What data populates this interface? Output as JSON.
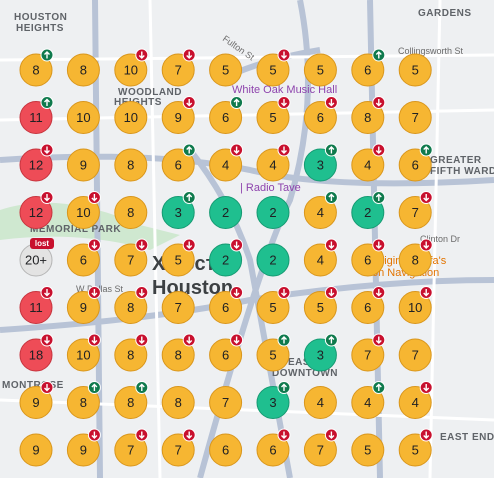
{
  "map": {
    "labels": [
      "HOUSTON",
      "HEIGHTS",
      "WOODLAND",
      "HEIGHTS",
      "White Oak Music Hall",
      "Collingsworth St",
      "Fulton St",
      "GREATER",
      "FIFTH WARD",
      "| Radio Tave",
      "MEMORIAL PARK",
      "Хьюстон",
      "Houston",
      "Clinton Dr",
      "Original Ninfa's",
      "on Navigation",
      "W Dallas St",
      "EAST",
      "DOWNTOWN",
      "MONTROSE",
      "EAST END",
      "GARDENS"
    ],
    "markers": [
      {
        "label": "8",
        "kind": "normal",
        "trend": "up"
      },
      {
        "label": "8",
        "kind": "normal"
      },
      {
        "label": "10",
        "kind": "normal",
        "trend": "down"
      },
      {
        "label": "7",
        "kind": "normal",
        "trend": "down"
      },
      {
        "label": "5",
        "kind": "normal"
      },
      {
        "label": "5",
        "kind": "normal",
        "trend": "down"
      },
      {
        "label": "5",
        "kind": "normal"
      },
      {
        "label": "6",
        "kind": "normal",
        "trend": "up"
      },
      {
        "label": "5",
        "kind": "normal"
      },
      {
        "label": "11",
        "kind": "high",
        "trend": "up"
      },
      {
        "label": "10",
        "kind": "normal"
      },
      {
        "label": "10",
        "kind": "normal"
      },
      {
        "label": "9",
        "kind": "normal",
        "trend": "down"
      },
      {
        "label": "6",
        "kind": "normal",
        "trend": "up"
      },
      {
        "label": "5",
        "kind": "normal",
        "trend": "down"
      },
      {
        "label": "6",
        "kind": "normal",
        "trend": "down"
      },
      {
        "label": "8",
        "kind": "normal",
        "trend": "down"
      },
      {
        "label": "7",
        "kind": "normal"
      },
      {
        "label": "12",
        "kind": "high",
        "trend": "down"
      },
      {
        "label": "9",
        "kind": "normal"
      },
      {
        "label": "8",
        "kind": "normal"
      },
      {
        "label": "6",
        "kind": "normal",
        "trend": "up"
      },
      {
        "label": "4",
        "kind": "normal",
        "trend": "down"
      },
      {
        "label": "4",
        "kind": "normal",
        "trend": "down"
      },
      {
        "label": "3",
        "kind": "low",
        "trend": "up"
      },
      {
        "label": "4",
        "kind": "normal",
        "trend": "down"
      },
      {
        "label": "6",
        "kind": "normal",
        "trend": "up"
      },
      {
        "label": "12",
        "kind": "high",
        "trend": "down"
      },
      {
        "label": "10",
        "kind": "normal",
        "trend": "down"
      },
      {
        "label": "8",
        "kind": "normal"
      },
      {
        "label": "3",
        "kind": "low",
        "trend": "up"
      },
      {
        "label": "2",
        "kind": "low"
      },
      {
        "label": "2",
        "kind": "low"
      },
      {
        "label": "4",
        "kind": "normal",
        "trend": "up"
      },
      {
        "label": "2",
        "kind": "low",
        "trend": "up"
      },
      {
        "label": "7",
        "kind": "normal",
        "trend": "down"
      },
      {
        "label": "20+",
        "kind": "none",
        "trend": "lost"
      },
      {
        "label": "6",
        "kind": "normal",
        "trend": "down"
      },
      {
        "label": "7",
        "kind": "normal",
        "trend": "down"
      },
      {
        "label": "5",
        "kind": "normal",
        "trend": "down"
      },
      {
        "label": "2",
        "kind": "low",
        "trend": "down"
      },
      {
        "label": "2",
        "kind": "low"
      },
      {
        "label": "4",
        "kind": "normal",
        "trend": "down"
      },
      {
        "label": "6",
        "kind": "normal",
        "trend": "down"
      },
      {
        "label": "8",
        "kind": "normal",
        "trend": "down"
      },
      {
        "label": "11",
        "kind": "high",
        "trend": "down"
      },
      {
        "label": "9",
        "kind": "normal",
        "trend": "down"
      },
      {
        "label": "8",
        "kind": "normal",
        "trend": "down"
      },
      {
        "label": "7",
        "kind": "normal"
      },
      {
        "label": "6",
        "kind": "normal",
        "trend": "down"
      },
      {
        "label": "5",
        "kind": "normal",
        "trend": "down"
      },
      {
        "label": "5",
        "kind": "normal",
        "trend": "down"
      },
      {
        "label": "6",
        "kind": "normal",
        "trend": "down"
      },
      {
        "label": "10",
        "kind": "normal",
        "trend": "down"
      },
      {
        "label": "18",
        "kind": "high",
        "trend": "down"
      },
      {
        "label": "10",
        "kind": "normal",
        "trend": "down"
      },
      {
        "label": "8",
        "kind": "normal",
        "trend": "down"
      },
      {
        "label": "8",
        "kind": "normal",
        "trend": "down"
      },
      {
        "label": "6",
        "kind": "normal",
        "trend": "down"
      },
      {
        "label": "5",
        "kind": "normal",
        "trend": "up"
      },
      {
        "label": "3",
        "kind": "low",
        "trend": "up"
      },
      {
        "label": "7",
        "kind": "normal",
        "trend": "down"
      },
      {
        "label": "7",
        "kind": "normal"
      },
      {
        "label": "9",
        "kind": "normal",
        "trend": "down"
      },
      {
        "label": "8",
        "kind": "normal",
        "trend": "up"
      },
      {
        "label": "8",
        "kind": "normal",
        "trend": "up"
      },
      {
        "label": "8",
        "kind": "normal"
      },
      {
        "label": "7",
        "kind": "normal"
      },
      {
        "label": "3",
        "kind": "low",
        "trend": "up"
      },
      {
        "label": "4",
        "kind": "normal"
      },
      {
        "label": "4",
        "kind": "normal",
        "trend": "up"
      },
      {
        "label": "4",
        "kind": "normal",
        "trend": "down"
      },
      {
        "label": "9",
        "kind": "normal"
      },
      {
        "label": "9",
        "kind": "normal",
        "trend": "down"
      },
      {
        "label": "7",
        "kind": "normal",
        "trend": "down"
      },
      {
        "label": "7",
        "kind": "normal",
        "trend": "down"
      },
      {
        "label": "6",
        "kind": "normal"
      },
      {
        "label": "6",
        "kind": "normal",
        "trend": "down"
      },
      {
        "label": "7",
        "kind": "normal",
        "trend": "down"
      },
      {
        "label": "5",
        "kind": "normal"
      },
      {
        "label": "5",
        "kind": "normal",
        "trend": "down"
      }
    ]
  }
}
